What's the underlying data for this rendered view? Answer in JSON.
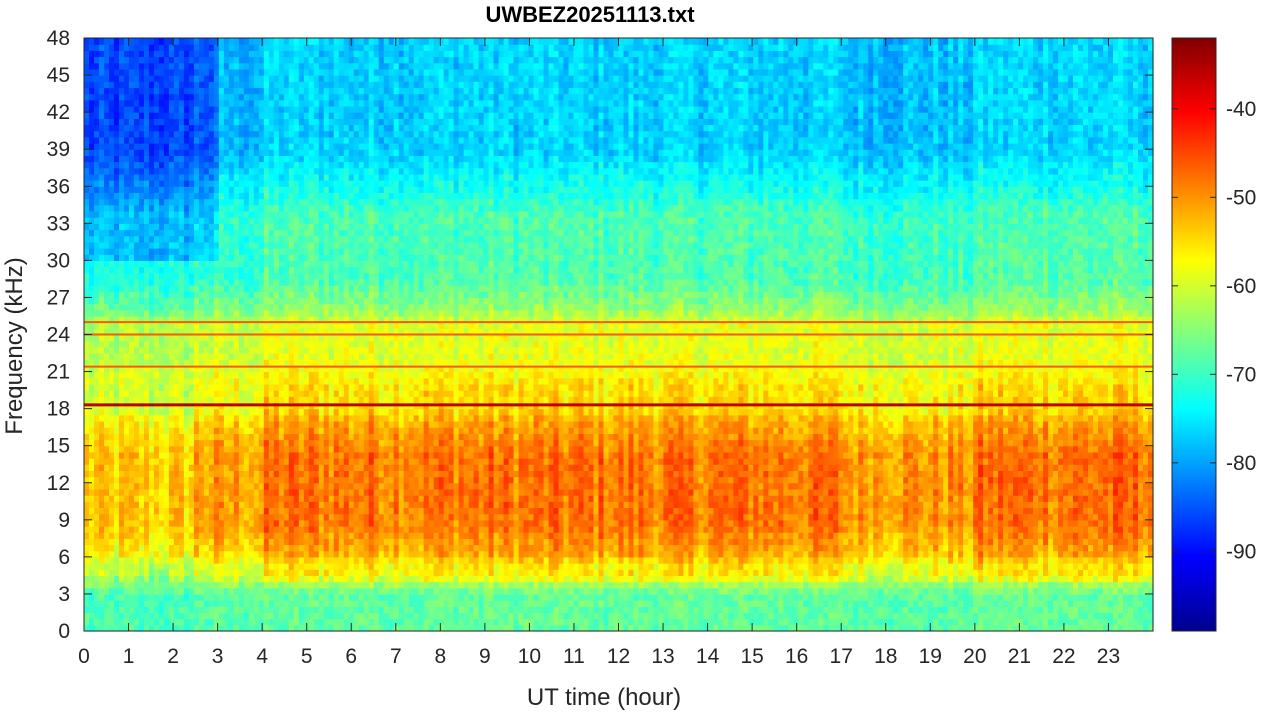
{
  "chart_data": {
    "type": "heatmap",
    "title": "UWBEZ20251113.txt",
    "xlabel": "UT time (hour)",
    "ylabel": "Frequency (kHz)",
    "xlim": [
      0,
      24
    ],
    "ylim": [
      0,
      48
    ],
    "x_ticks": [
      "0",
      "1",
      "2",
      "3",
      "4",
      "5",
      "6",
      "7",
      "8",
      "9",
      "10",
      "11",
      "12",
      "13",
      "14",
      "15",
      "16",
      "17",
      "18",
      "19",
      "20",
      "21",
      "22",
      "23"
    ],
    "y_ticks": [
      "0",
      "3",
      "6",
      "9",
      "12",
      "15",
      "18",
      "21",
      "24",
      "27",
      "30",
      "33",
      "36",
      "39",
      "42",
      "45",
      "48"
    ],
    "colorbar": {
      "range": [
        -99,
        -32
      ],
      "ticks": [
        "-40",
        "-50",
        "-60",
        "-70",
        "-80",
        "-90"
      ],
      "colormap": "jet"
    },
    "narrowband_lines_khz": [
      18.3,
      21.4,
      24.0,
      25.0
    ],
    "intensity_profile": {
      "description": "approximate spectral power (dB) by frequency band",
      "bands_khz": [
        [
          0,
          4
        ],
        [
          4,
          6
        ],
        [
          6,
          17
        ],
        [
          17,
          21
        ],
        [
          21,
          26
        ],
        [
          26,
          36
        ],
        [
          36,
          48
        ]
      ],
      "typical_db": [
        -68,
        -58,
        -50,
        -57,
        -60,
        -70,
        -78
      ]
    }
  }
}
